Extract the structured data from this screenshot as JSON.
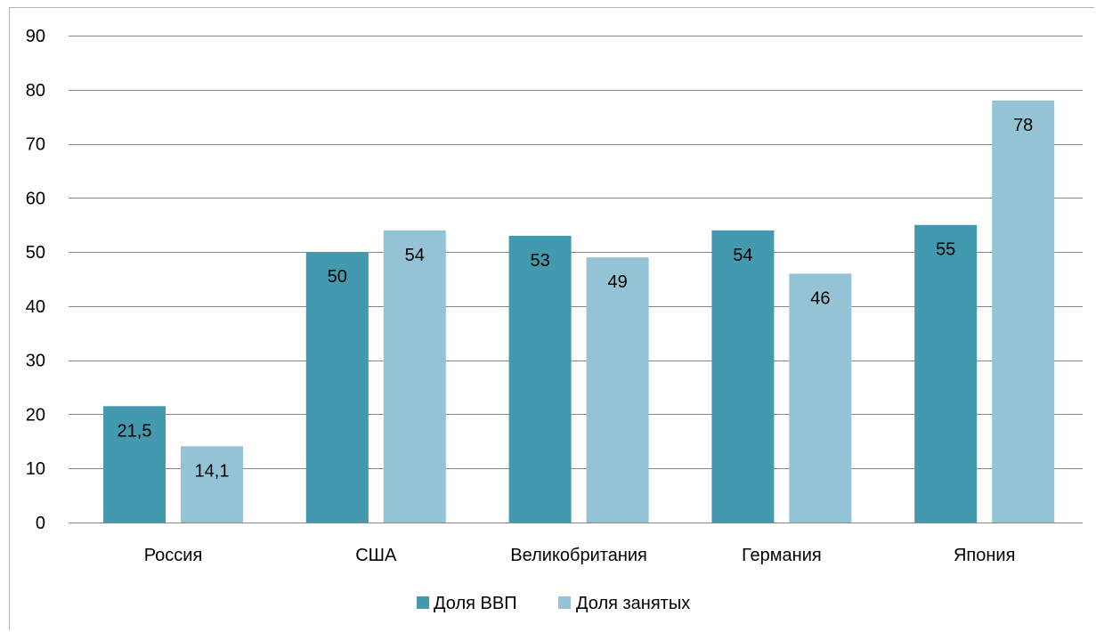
{
  "chart_data": {
    "type": "bar",
    "title": "",
    "xlabel": "",
    "ylabel": "",
    "categories": [
      "Россия",
      "США",
      "Великобритания",
      "Германия",
      "Япония"
    ],
    "series": [
      {
        "name": "Доля ВВП",
        "color": "#4399ae",
        "values": [
          21.5,
          50,
          53,
          54,
          55
        ],
        "labels": [
          "21,5",
          "50",
          "53",
          "54",
          "55"
        ]
      },
      {
        "name": "Доля занятых",
        "color": "#93c3d4",
        "values": [
          14.1,
          54,
          49,
          46,
          78
        ],
        "labels": [
          "14,1",
          "54",
          "49",
          "46",
          "78"
        ]
      }
    ],
    "ylim": [
      0,
      90
    ],
    "yticks": [
      0,
      10,
      20,
      30,
      40,
      50,
      60,
      70,
      80,
      90
    ],
    "ytick_labels": [
      "0",
      "10",
      "20",
      "30",
      "40",
      "50",
      "60",
      "70",
      "80",
      "90"
    ],
    "grid": true,
    "legend_position": "bottom"
  }
}
